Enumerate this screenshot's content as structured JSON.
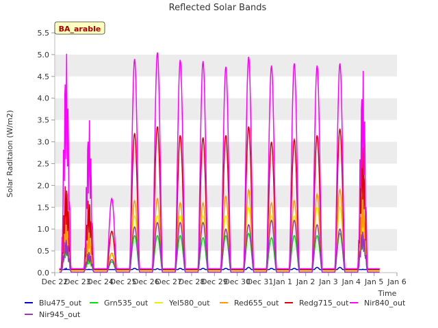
{
  "chart_data": {
    "type": "line",
    "title": "Reflected Solar Bands",
    "xlabel": "Time",
    "ylabel": "Solar Raditaion (W/m2)",
    "site_badge": "BA_arable",
    "ylim": [
      0,
      5.5
    ],
    "yticks": [
      "0.0",
      "0.5",
      "1.0",
      "1.5",
      "2.0",
      "2.5",
      "3.0",
      "3.5",
      "4.0",
      "4.5",
      "5.0",
      "5.5"
    ],
    "xlim": [
      0,
      15
    ],
    "xticks": [
      "Dec 22",
      "Dec 23",
      "Dec 24",
      "Dec 25",
      "Dec 26",
      "Dec 27",
      "Dec 28",
      "Dec 29",
      "Dec 30",
      "Dec 31",
      "Jan 1",
      "Jan 2",
      "Jan 3",
      "Jan 4",
      "Jan 5",
      "Jan 6"
    ],
    "grid": "horizontal alternating bands",
    "legend_position": "bottom",
    "x_unit": "days after Dec 22",
    "days": [
      0.5,
      1.5,
      2.5,
      3.5,
      4.5,
      5.5,
      6.5,
      7.5,
      8.5,
      9.5,
      10.5,
      11.5,
      12.5,
      13.5
    ],
    "day_labels": [
      "Dec 22",
      "Dec 23",
      "Dec 24",
      "Dec 25",
      "Dec 26",
      "Dec 27",
      "Dec 28",
      "Dec 29",
      "Dec 30",
      "Dec 31",
      "Jan 1",
      "Jan 2",
      "Jan 3",
      "Jan 4"
    ],
    "series": [
      {
        "name": "Blu475_out",
        "color": "#0000cc",
        "night": 0.07,
        "daily_peak": [
          0.1,
          0.08,
          0.06,
          0.1,
          0.09,
          0.1,
          0.1,
          0.1,
          0.12,
          0.1,
          0.1,
          0.12,
          0.12,
          0.08
        ]
      },
      {
        "name": "Grn535_out",
        "color": "#00dd00",
        "night": 0.05,
        "daily_peak": [
          0.7,
          0.4,
          0.25,
          0.85,
          0.85,
          0.85,
          0.8,
          0.85,
          0.9,
          0.8,
          0.85,
          0.85,
          0.9,
          1.1
        ]
      },
      {
        "name": "Yel580_out",
        "color": "#eeee00",
        "night": 0.05,
        "daily_peak": [
          1.0,
          0.6,
          0.4,
          1.3,
          1.3,
          1.3,
          1.3,
          1.3,
          1.5,
          1.3,
          1.3,
          1.5,
          1.5,
          1.5
        ]
      },
      {
        "name": "Red655_out",
        "color": "#ff9900",
        "night": 0.04,
        "daily_peak": [
          1.3,
          1.0,
          0.45,
          1.65,
          1.7,
          1.6,
          1.6,
          1.75,
          1.9,
          1.6,
          1.65,
          1.8,
          1.9,
          1.9
        ]
      },
      {
        "name": "Redg715_out",
        "color": "#dd0000",
        "night": 0.08,
        "daily_peak": [
          2.1,
          1.75,
          0.95,
          3.2,
          3.35,
          3.15,
          3.1,
          3.15,
          3.35,
          3.0,
          3.05,
          3.15,
          3.3,
          3.2
        ]
      },
      {
        "name": "Nir840_out",
        "color": "#ff00ff",
        "night": 0.09,
        "daily_peak": [
          5.1,
          3.55,
          1.7,
          4.9,
          5.05,
          4.88,
          4.85,
          4.72,
          4.95,
          4.75,
          4.8,
          4.75,
          4.8,
          4.7
        ]
      },
      {
        "name": "Nir945_out",
        "color": "#9933cc",
        "night": 0.01,
        "daily_peak": [
          0.8,
          0.5,
          0.3,
          1.05,
          1.15,
          1.15,
          1.15,
          1.0,
          1.1,
          1.2,
          1.2,
          1.1,
          1.0,
          1.0
        ]
      }
    ]
  }
}
